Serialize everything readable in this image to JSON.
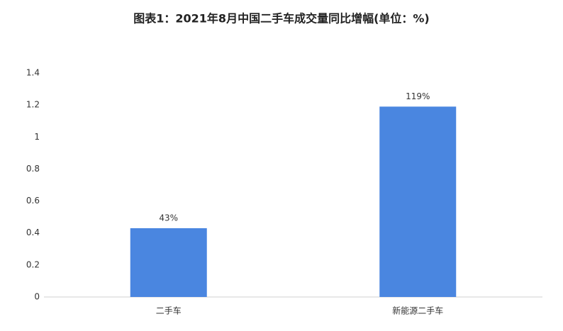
{
  "chart_data": {
    "type": "bar",
    "title": "图表1：2021年8月中国二手车成交量同比增幅(单位：%)",
    "categories": [
      "二手车",
      "新能源二手车"
    ],
    "values": [
      0.43,
      1.19
    ],
    "value_labels": [
      "43%",
      "119%"
    ],
    "color": "#4a86e0",
    "ylim": [
      0,
      1.4
    ],
    "yticks": [
      0,
      0.2,
      0.4,
      0.6,
      0.8,
      1,
      1.2,
      1.4
    ],
    "grid": false
  }
}
